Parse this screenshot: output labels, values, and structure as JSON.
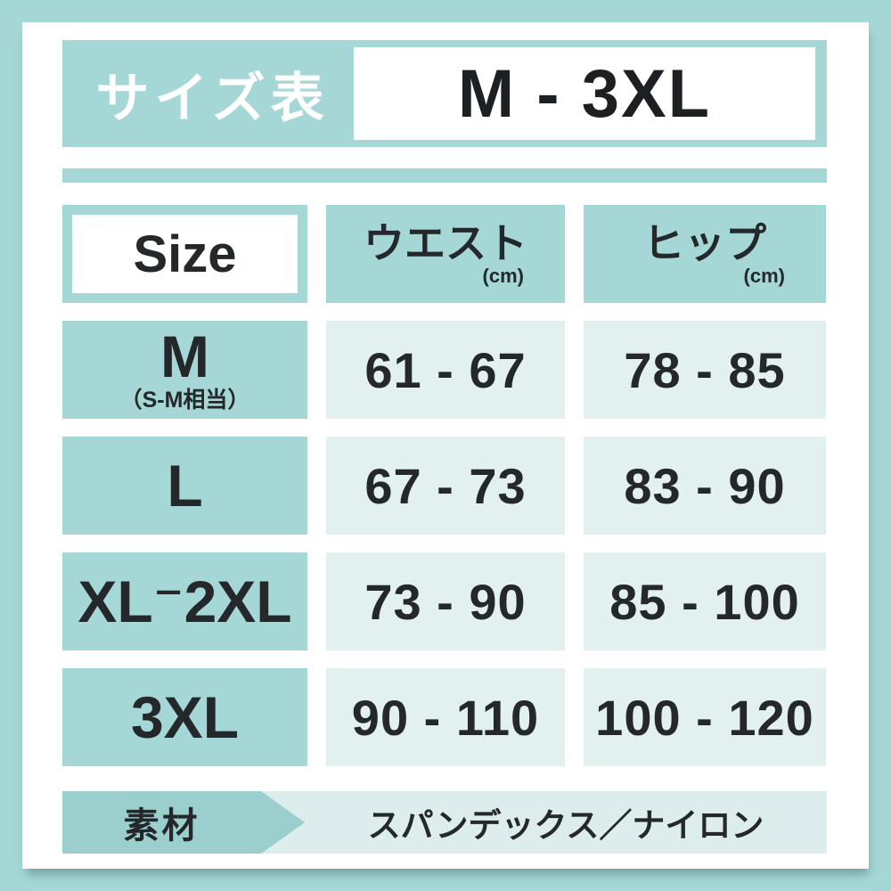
{
  "header": {
    "title": "サイズ表",
    "range": "M - 3XL"
  },
  "table": {
    "header": {
      "size_label": "Size",
      "waist_label": "ウエスト",
      "hip_label": "ヒップ",
      "unit": "(cm)"
    },
    "rows": [
      {
        "size": "M",
        "note": "（S-M相当）",
        "waist": "61 - 67",
        "hip": "78 - 85"
      },
      {
        "size": "L",
        "waist": "67 - 73",
        "hip": "83 - 90"
      },
      {
        "size": "XL⁻2XL",
        "waist": "73 - 90",
        "hip": "85 - 100"
      },
      {
        "size": "3XL",
        "waist": "90 - 110",
        "hip": "100 - 120"
      }
    ]
  },
  "footer": {
    "label": "素材",
    "value": "スパンデックス／ナイロン"
  },
  "colors": {
    "teal": "#a5d7d6",
    "teal_dark": "#9bcfce",
    "cell_light": "#e2f0ef",
    "footer_light": "#ddecec",
    "text_dark": "#24282a",
    "white": "#ffffff"
  },
  "chart_data": {
    "type": "table",
    "title": "サイズ表 M - 3XL",
    "columns": [
      "Size",
      "ウエスト (cm)",
      "ヒップ (cm)"
    ],
    "rows": [
      [
        "M（S-M相当）",
        "61 - 67",
        "78 - 85"
      ],
      [
        "L",
        "67 - 73",
        "83 - 90"
      ],
      [
        "XL-2XL",
        "73 - 90",
        "85 - 100"
      ],
      [
        "3XL",
        "90 - 110",
        "100 - 120"
      ]
    ],
    "footnote": "素材：スパンデックス／ナイロン",
    "legend_position": "none",
    "grid": false
  }
}
